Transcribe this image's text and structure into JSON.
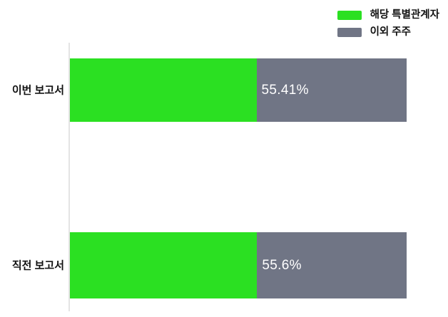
{
  "chart_data": {
    "type": "bar",
    "orientation": "horizontal",
    "stacked": true,
    "title": "",
    "xlabel": "",
    "ylabel": "",
    "categories": [
      "이번 보고서",
      "직전 보고서"
    ],
    "series": [
      {
        "name": "해당 특별관계자",
        "color": "#2be022",
        "values": [
          55.41,
          55.6
        ]
      },
      {
        "name": "이외 주주",
        "color": "#707585",
        "values": [
          44.59,
          44.4
        ]
      }
    ],
    "value_labels": [
      "55.41%",
      "55.6%"
    ],
    "value_label_color": "#ffffff",
    "xlim": [
      0,
      100
    ],
    "grid": false,
    "legend_position": "top-right",
    "axis_line_color": "#e4e4e4",
    "background_color": "#ffffff"
  },
  "legend": {
    "items": [
      {
        "label": "해당 특별관계자",
        "color": "#2be022"
      },
      {
        "label": "이외 주주",
        "color": "#707585"
      }
    ]
  }
}
